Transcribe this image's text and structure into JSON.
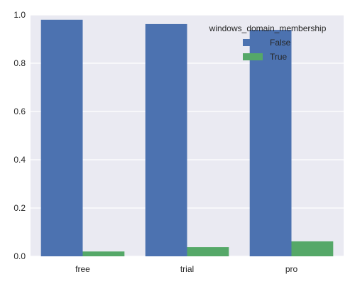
{
  "chart_data": {
    "type": "bar",
    "categories": [
      "free",
      "trial",
      "pro"
    ],
    "series": [
      {
        "name": "False",
        "values": [
          0.98,
          0.962,
          0.938
        ],
        "color": "#4C72B0"
      },
      {
        "name": "True",
        "values": [
          0.02,
          0.038,
          0.062
        ],
        "color": "#55A868"
      }
    ],
    "ylim": [
      0,
      1.0
    ],
    "yticks": [
      "0.0",
      "0.2",
      "0.4",
      "0.6",
      "0.8",
      "1.0"
    ],
    "xlabel": "",
    "ylabel": "",
    "grid": true,
    "background": "#EAEAF2",
    "legend": {
      "title": "windows_domain_membership",
      "position": "top-right"
    }
  }
}
